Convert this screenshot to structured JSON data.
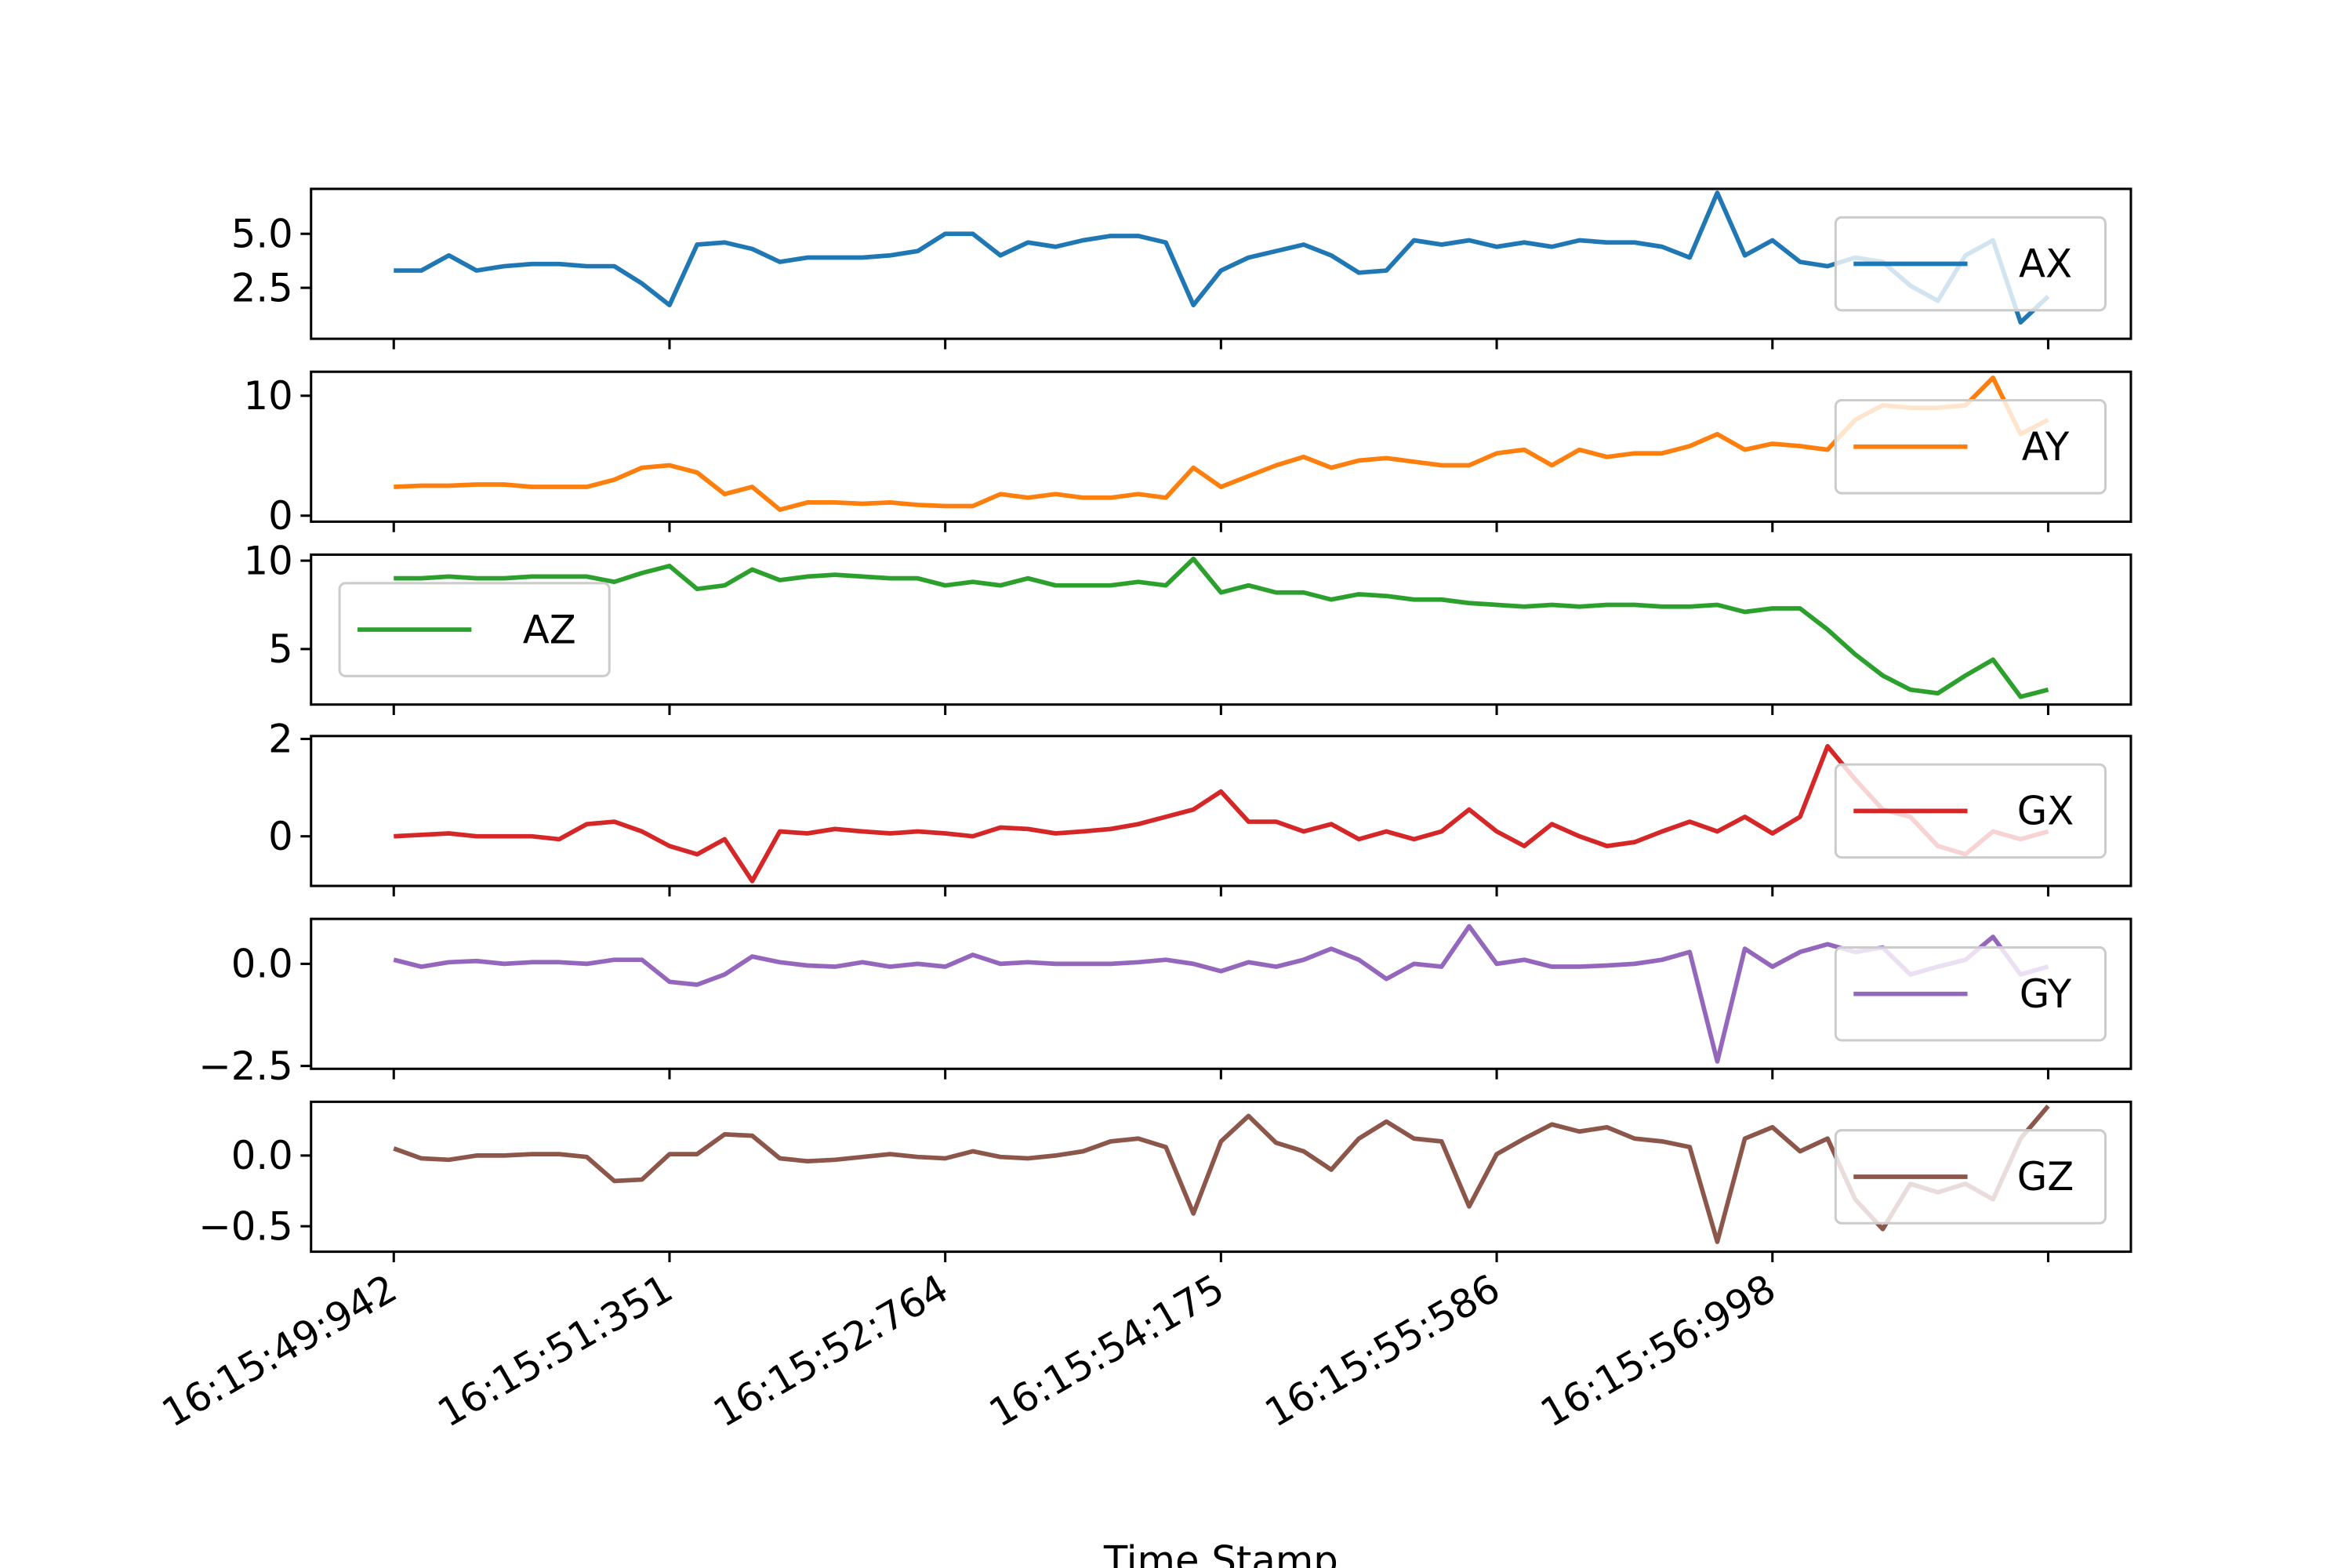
{
  "chart_data": {
    "type": "line",
    "xlabel": "Time Stamp",
    "x": [
      0,
      5,
      10,
      15,
      20,
      25,
      30,
      35,
      40,
      45,
      50,
      55,
      60,
      65,
      70,
      75,
      80,
      85,
      90,
      95,
      100,
      105,
      110,
      115,
      120,
      125,
      130,
      135,
      140,
      145,
      150,
      155,
      160,
      165,
      170,
      175,
      180,
      185,
      190,
      195,
      200,
      205,
      210,
      215,
      220,
      225,
      230,
      235,
      240,
      245,
      250,
      255,
      260,
      265,
      270,
      275,
      280,
      285,
      290,
      295,
      300
    ],
    "xlim": [
      -15,
      315
    ],
    "xticks": [
      {
        "value": 0,
        "label": "16:15:49:942"
      },
      {
        "value": 50,
        "label": "16:15:51:351"
      },
      {
        "value": 100,
        "label": "16:15:52:764"
      },
      {
        "value": 150,
        "label": "16:15:54:175"
      },
      {
        "value": 200,
        "label": "16:15:55:586"
      },
      {
        "value": 250,
        "label": "16:15:56:998"
      },
      {
        "value": 300,
        "label": null
      }
    ],
    "grid": false,
    "panels": [
      {
        "ylim": [
          0.14,
          7.08
        ],
        "yticks": [
          2.5,
          {
            "value": 5,
            "label": "5.0"
          }
        ],
        "legend": "center right",
        "series": [
          {
            "name": "AX",
            "color": "#1f77b4",
            "values": [
              3.3,
              3.3,
              4.0,
              3.3,
              3.5,
              3.6,
              3.6,
              3.5,
              3.5,
              2.7,
              1.7,
              4.5,
              4.6,
              4.3,
              3.7,
              3.9,
              3.9,
              3.9,
              4.0,
              4.2,
              5.0,
              5.0,
              4.0,
              4.6,
              4.4,
              4.7,
              4.9,
              4.9,
              4.6,
              1.7,
              3.3,
              3.9,
              4.2,
              4.5,
              4.0,
              3.2,
              3.3,
              4.7,
              4.5,
              4.7,
              4.4,
              4.6,
              4.4,
              4.7,
              4.6,
              4.6,
              4.4,
              3.9,
              6.9,
              4.0,
              4.7,
              3.7,
              3.5,
              3.9,
              3.7,
              2.6,
              1.9,
              4.0,
              4.7,
              0.9,
              2.1
            ]
          }
        ]
      },
      {
        "ylim": [
          -0.5,
          12
        ],
        "yticks": [
          0,
          10
        ],
        "legend": "center right",
        "series": [
          {
            "name": "AY",
            "color": "#ff7f0e",
            "values": [
              2.4,
              2.5,
              2.5,
              2.6,
              2.6,
              2.4,
              2.4,
              2.4,
              3.0,
              4.0,
              4.2,
              3.6,
              1.8,
              2.4,
              0.5,
              1.1,
              1.1,
              1.0,
              1.1,
              0.9,
              0.8,
              0.8,
              1.8,
              1.5,
              1.8,
              1.5,
              1.5,
              1.8,
              1.5,
              4.0,
              2.4,
              3.3,
              4.2,
              4.9,
              4.0,
              4.6,
              4.8,
              4.5,
              4.2,
              4.2,
              5.2,
              5.5,
              4.2,
              5.5,
              4.9,
              5.2,
              5.2,
              5.8,
              6.8,
              5.5,
              6.0,
              5.8,
              5.5,
              8.0,
              9.2,
              9.0,
              9.0,
              9.2,
              11.5,
              6.8,
              8.0
            ]
          }
        ]
      },
      {
        "ylim": [
          1.86,
          10.34
        ],
        "yticks": [
          5,
          10
        ],
        "legend": "center left",
        "series": [
          {
            "name": "AZ",
            "color": "#2ca02c",
            "values": [
              9.0,
              9.0,
              9.1,
              9.0,
              9.0,
              9.1,
              9.1,
              9.1,
              8.8,
              9.3,
              9.7,
              8.4,
              8.6,
              9.5,
              8.9,
              9.1,
              9.2,
              9.1,
              9.0,
              9.0,
              8.6,
              8.8,
              8.6,
              9.0,
              8.6,
              8.6,
              8.6,
              8.8,
              8.6,
              10.1,
              8.2,
              8.6,
              8.2,
              8.2,
              7.8,
              8.1,
              8.0,
              7.8,
              7.8,
              7.6,
              7.5,
              7.4,
              7.5,
              7.4,
              7.5,
              7.5,
              7.4,
              7.4,
              7.5,
              7.1,
              7.3,
              7.3,
              6.1,
              4.7,
              3.5,
              2.7,
              2.5,
              3.5,
              4.4,
              2.3,
              2.7
            ]
          }
        ]
      },
      {
        "ylim": [
          -1.02,
          2.06
        ],
        "yticks": [
          0,
          2
        ],
        "legend": "center right",
        "series": [
          {
            "name": "GX",
            "color": "#d62728",
            "values": [
              0,
              0.03,
              0.06,
              0,
              0,
              0,
              -0.06,
              0.25,
              0.3,
              0.1,
              -0.2,
              -0.37,
              -0.06,
              -0.92,
              0.1,
              0.06,
              0.15,
              0.1,
              0.06,
              0.1,
              0.06,
              0,
              0.18,
              0.15,
              0.06,
              0.1,
              0.15,
              0.25,
              0.4,
              0.55,
              0.92,
              0.3,
              0.3,
              0.1,
              0.25,
              -0.06,
              0.1,
              -0.06,
              0.1,
              0.55,
              0.1,
              -0.2,
              0.25,
              0,
              -0.2,
              -0.12,
              0.1,
              0.3,
              0.1,
              0.4,
              0.06,
              0.4,
              1.85,
              1.17,
              0.55,
              0.4,
              -0.2,
              -0.37,
              0.1,
              -0.06,
              0.1
            ]
          }
        ]
      },
      {
        "ylim": [
          -2.57,
          1.1
        ],
        "yticks": [
          {
            "value": -2.5,
            "label": "−2.5"
          },
          {
            "value": 0,
            "label": "0.0"
          }
        ],
        "legend": "center right",
        "series": [
          {
            "name": "GY",
            "color": "#9467bd",
            "values": [
              0.1,
              -0.07,
              0.04,
              0.07,
              0,
              0.04,
              0.04,
              0,
              0.1,
              0.1,
              -0.44,
              -0.51,
              -0.26,
              0.18,
              0.04,
              -0.04,
              -0.07,
              0.04,
              -0.07,
              0,
              -0.07,
              0.22,
              0,
              0.04,
              0,
              0,
              0,
              0.04,
              0.1,
              0,
              -0.18,
              0.04,
              -0.07,
              0.1,
              0.37,
              0.1,
              -0.37,
              0,
              -0.07,
              0.92,
              0,
              0.1,
              -0.07,
              -0.07,
              -0.04,
              0,
              0.1,
              0.29,
              -2.39,
              0.37,
              -0.07,
              0.29,
              0.48,
              0.29,
              0.4,
              -0.26,
              -0.07,
              0.1,
              0.66,
              -0.26,
              -0.07
            ]
          }
        ]
      },
      {
        "ylim": [
          -0.68,
          0.38
        ],
        "yticks": [
          {
            "value": -0.5,
            "label": "−0.5"
          },
          {
            "value": 0,
            "label": "0.0"
          }
        ],
        "legend": "center right",
        "series": [
          {
            "name": "GZ",
            "color": "#8c564b",
            "values": [
              0.05,
              -0.02,
              -0.03,
              0,
              0,
              0.01,
              0.01,
              -0.01,
              -0.18,
              -0.17,
              0.01,
              0.01,
              0.15,
              0.14,
              -0.02,
              -0.04,
              -0.03,
              -0.01,
              0.01,
              -0.01,
              -0.02,
              0.03,
              -0.01,
              -0.02,
              0,
              0.03,
              0.1,
              0.12,
              0.06,
              -0.41,
              0.1,
              0.28,
              0.09,
              0.03,
              -0.1,
              0.12,
              0.24,
              0.12,
              0.1,
              -0.36,
              0.01,
              0.12,
              0.22,
              0.17,
              0.2,
              0.12,
              0.1,
              0.06,
              -0.61,
              0.12,
              0.2,
              0.03,
              0.12,
              -0.31,
              -0.52,
              -0.2,
              -0.26,
              -0.2,
              -0.31,
              0.12,
              0.35
            ]
          }
        ]
      }
    ]
  }
}
